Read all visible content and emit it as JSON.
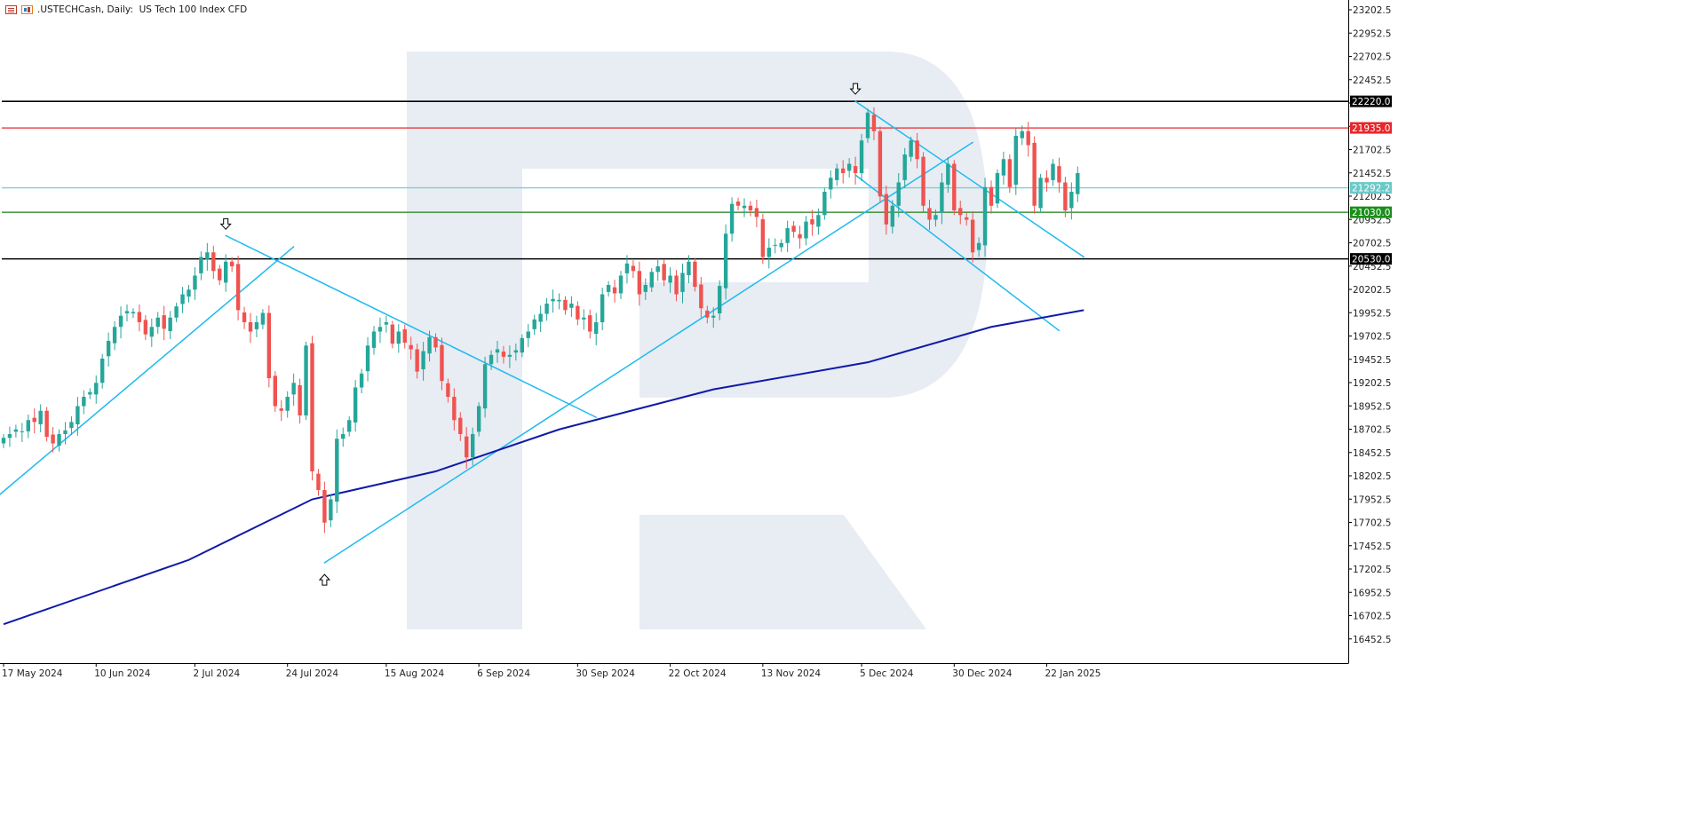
{
  "header": {
    "symbol": ".USTECHCash",
    "timeframe": "Daily:",
    "description": "US Tech 100 Index CFD",
    "icons": [
      "chart-list-icon",
      "chart-window-icon"
    ]
  },
  "colors": {
    "bull": "#26a69a",
    "bear": "#ef5350",
    "trendline": "#1ebaf0",
    "ma": "#0f1aa8",
    "grid_axis": "#000000",
    "resistance_red": "#e8262b",
    "support_green": "#1a7f1a",
    "current_price": "#7fcfd0",
    "watermark": "#e8ecf3"
  },
  "chart_data": {
    "type": "candlestick",
    "title": ".USTECHCash, Daily:  US Tech 100 Index CFD",
    "ylim": [
      16300,
      23300
    ],
    "y_ticks": [
      "23202.5",
      "22952.5",
      "22702.5",
      "22452.5",
      "22202.5",
      "21952.5",
      "21702.5",
      "21452.5",
      "21202.5",
      "20952.5",
      "20702.5",
      "20452.5",
      "20202.5",
      "19952.5",
      "19702.5",
      "19452.5",
      "19202.5",
      "18952.5",
      "18702.5",
      "18452.5",
      "18202.5",
      "17952.5",
      "17702.5",
      "17452.5",
      "17202.5",
      "16952.5",
      "16702.5",
      "16452.5"
    ],
    "x_ticks": [
      {
        "label": "17 May 2024",
        "bar": 0
      },
      {
        "label": "10 Jun 2024",
        "bar": 15
      },
      {
        "label": "2 Jul 2024",
        "bar": 31
      },
      {
        "label": "24 Jul 2024",
        "bar": 46
      },
      {
        "label": "15 Aug 2024",
        "bar": 62
      },
      {
        "label": "6 Sep 2024",
        "bar": 77
      },
      {
        "label": "30 Sep 2024",
        "bar": 93
      },
      {
        "label": "22 Oct 2024",
        "bar": 108
      },
      {
        "label": "13 Nov 2024",
        "bar": 123
      },
      {
        "label": "5 Dec 2024",
        "bar": 139
      },
      {
        "label": "30 Dec 2024",
        "bar": 154
      },
      {
        "label": "22 Jan 2025",
        "bar": 169
      }
    ],
    "levels": [
      {
        "price": 22220.0,
        "label": "22220.0",
        "color": "#000000",
        "label_bg": "#000000",
        "label_fg": "#ffffff"
      },
      {
        "price": 21935.0,
        "label": "21935.0",
        "color": "#e8262b",
        "label_bg": "#e8262b",
        "label_fg": "#ffffff"
      },
      {
        "price": 21292.2,
        "label": "21292.2",
        "color": "#7fcfd0",
        "label_bg": "#6cc9c9",
        "label_fg": "#ffffff"
      },
      {
        "price": 21030.0,
        "label": "21030.0",
        "color": "#1a7f1a",
        "label_bg": "#1a8f1a",
        "label_fg": "#ffffff"
      },
      {
        "price": 20530.0,
        "label": "20530.0",
        "color": "#000000",
        "label_bg": "#000000",
        "label_fg": "#ffffff"
      }
    ],
    "closes": [
      18610,
      18650,
      18700,
      18680,
      18800,
      18780,
      18900,
      18620,
      18550,
      18650,
      18690,
      18780,
      18950,
      19050,
      19100,
      19200,
      19460,
      19650,
      19800,
      19920,
      19970,
      19960,
      19850,
      19720,
      19800,
      19900,
      19780,
      19900,
      20020,
      20150,
      20200,
      20350,
      20550,
      20600,
      20400,
      20300,
      20500,
      20450,
      19980,
      19850,
      19750,
      19850,
      19950,
      19250,
      18950,
      18900,
      19050,
      19200,
      18850,
      19600,
      18250,
      18050,
      17700,
      17950,
      18600,
      18650,
      18800,
      19150,
      19300,
      19600,
      19750,
      19800,
      19850,
      19620,
      19750,
      19630,
      19560,
      19320,
      19540,
      19690,
      19580,
      19220,
      19050,
      18800,
      18650,
      18400,
      18650,
      18950,
      19400,
      19500,
      19560,
      19480,
      19500,
      19550,
      19680,
      19750,
      19880,
      19940,
      20050,
      20100,
      20090,
      19980,
      20050,
      19880,
      19900,
      19750,
      19850,
      20150,
      20250,
      20160,
      20350,
      20480,
      20400,
      20150,
      20250,
      20390,
      20450,
      20300,
      20350,
      20150,
      20380,
      20500,
      20230,
      20000,
      19900,
      19920,
      20240,
      20800,
      21120,
      21100,
      21100,
      21050,
      20980,
      20550,
      20650,
      20680,
      20700,
      20860,
      20820,
      20750,
      20930,
      20900,
      21000,
      21250,
      21400,
      21500,
      21450,
      21550,
      21450,
      21800,
      22100,
      21900,
      21200,
      20900,
      21100,
      21350,
      21650,
      21800,
      21600,
      21100,
      20950,
      21000,
      21350,
      21550,
      21050,
      21000,
      20950,
      20600,
      20700,
      21300,
      21100,
      21450,
      21600,
      21300,
      21850,
      21900,
      21750,
      21100,
      21400,
      21350,
      21550,
      21350,
      21050,
      21250,
      21450
    ]
  },
  "watermark": "R"
}
